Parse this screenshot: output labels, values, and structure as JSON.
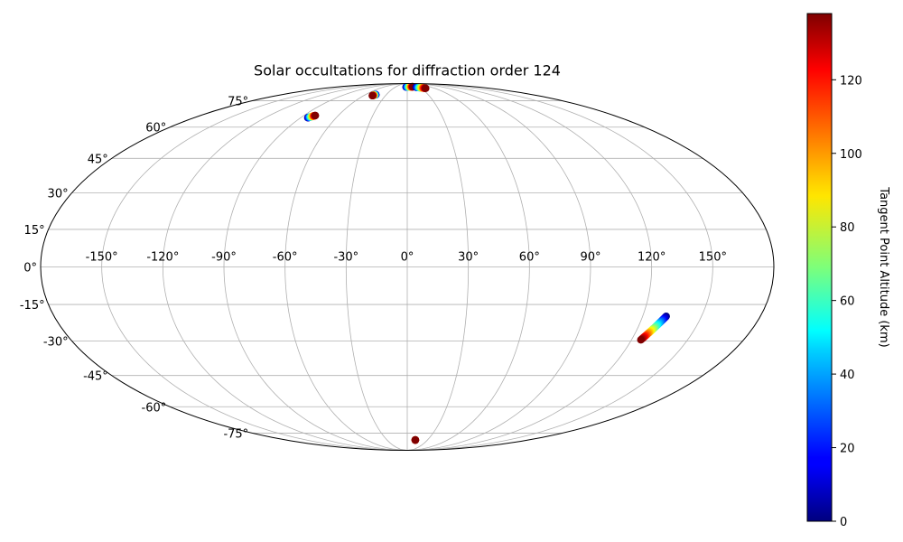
{
  "chart_data": {
    "type": "scatter",
    "projection": "mollweide",
    "title": "Solar occultations for diffraction order 124",
    "grid": true,
    "lon_ticks": [
      -150,
      -120,
      -90,
      -60,
      -30,
      0,
      30,
      60,
      90,
      120,
      150
    ],
    "lat_ticks": [
      -75,
      -60,
      -45,
      -30,
      -15,
      0,
      15,
      30,
      45,
      60,
      75
    ],
    "lon_tick_labels": [
      "-150°",
      "-120°",
      "-90°",
      "-60°",
      "-30°",
      "0°",
      "30°",
      "60°",
      "90°",
      "120°",
      "150°"
    ],
    "lat_tick_labels": [
      "-75°",
      "-60°",
      "-45°",
      "-30°",
      "-15°",
      "0°",
      "15°",
      "30°",
      "45°",
      "60°",
      "75°"
    ],
    "colorbar": {
      "label": "Tangent Point Altitude (km)",
      "colormap": "jet",
      "range": [
        0,
        138
      ],
      "ticks": [
        0,
        20,
        40,
        60,
        80,
        100,
        120
      ],
      "tick_labels": [
        "0",
        "20",
        "40",
        "60",
        "80",
        "100",
        "120"
      ]
    },
    "occultations": [
      {
        "lon_start": -84,
        "lat_start": 65.0,
        "alt_start": 0,
        "lon_end": -80,
        "lat_end": 66.2,
        "alt_end": 138
      },
      {
        "lon_start": -45,
        "lat_start": 79.2,
        "alt_start": 0,
        "lon_end": -48,
        "lat_end": 78.5,
        "alt_end": 138
      },
      {
        "lon_start": -3,
        "lat_start": 85.5,
        "alt_start": 0,
        "lon_end": 15,
        "lat_end": 85.7,
        "alt_end": 138
      },
      {
        "lon_start": 22,
        "lat_start": 85.3,
        "alt_start": 0,
        "lon_end": 40,
        "lat_end": 84.3,
        "alt_end": 138
      },
      {
        "lon_start": 132,
        "lat_start": -19.8,
        "alt_start": 0,
        "lon_end": 125,
        "lat_end": -29.5,
        "alt_end": 138
      },
      {
        "lon_start": 12,
        "lat_start": -79.8,
        "alt_start": 0,
        "lon_end": 12,
        "lat_end": -79.8,
        "alt_end": 138
      }
    ]
  }
}
